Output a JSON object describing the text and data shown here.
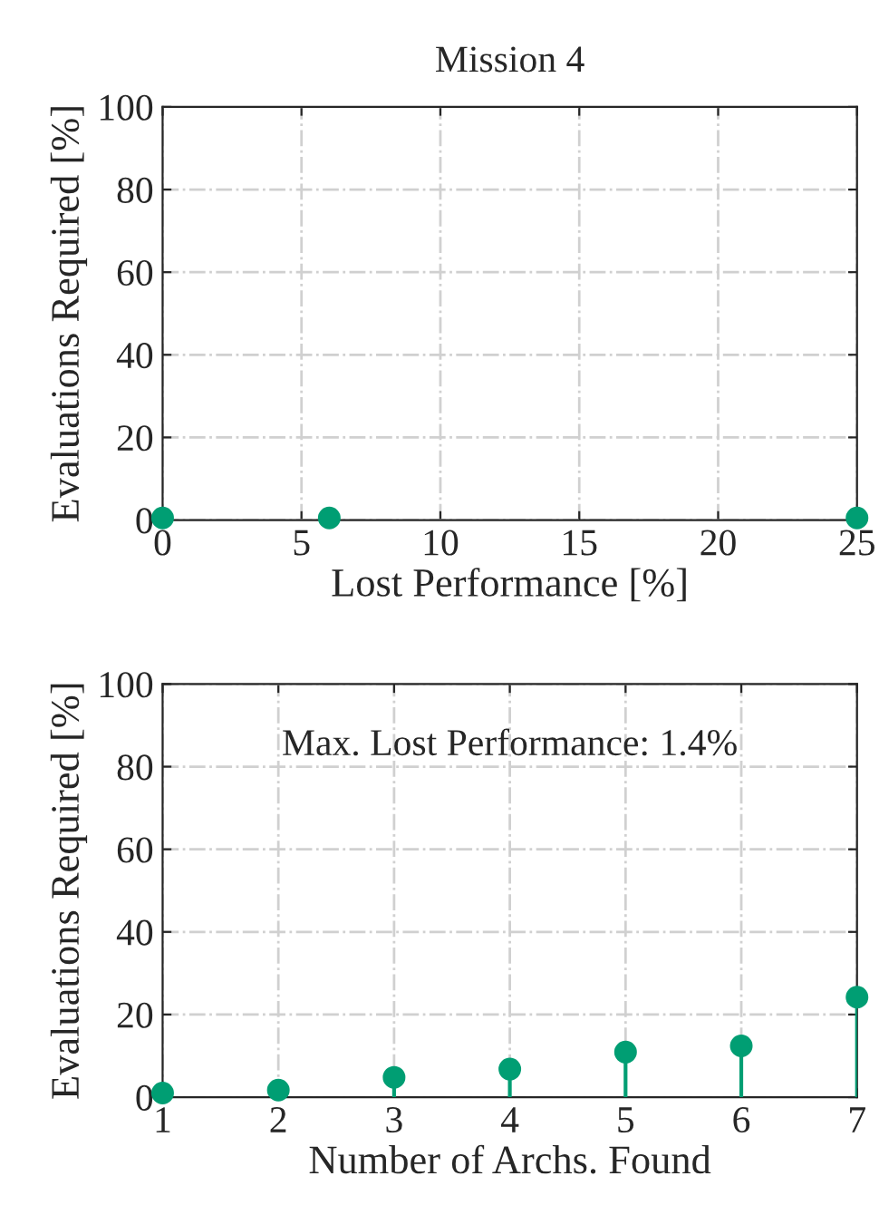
{
  "chart_data": [
    {
      "type": "lollipop",
      "title": "Mission 4",
      "xlabel": "Lost Performance [%]",
      "ylabel": "Evaluations Required [%]",
      "x": [
        0,
        6,
        25
      ],
      "series": [
        {
          "color": "#009e73",
          "values": [
            0.5,
            0.5,
            0.5
          ]
        }
      ],
      "xlim": [
        0,
        25
      ],
      "xticks": [
        0,
        5,
        10,
        15,
        20,
        25
      ],
      "ylim": [
        0,
        100
      ],
      "yticks": [
        0,
        20,
        40,
        60,
        80,
        100
      ],
      "grid": true,
      "marker": "circle"
    },
    {
      "type": "lollipop",
      "xlabel": "Number of Archs. Found",
      "ylabel": "Evaluations Required [%]",
      "x": [
        1,
        2,
        3,
        4,
        5,
        6,
        7
      ],
      "series": [
        {
          "color": "#009e73",
          "values": [
            1.0,
            1.7,
            4.8,
            6.8,
            10.9,
            12.4,
            24.2
          ]
        }
      ],
      "xlim": [
        1,
        7
      ],
      "xticks": [
        1,
        2,
        3,
        4,
        5,
        6,
        7
      ],
      "ylim": [
        0,
        100
      ],
      "yticks": [
        0,
        20,
        40,
        60,
        80,
        100
      ],
      "grid": true,
      "marker": "circle",
      "annotations": [
        "Max. Lost Performance: 1.4%"
      ]
    }
  ]
}
